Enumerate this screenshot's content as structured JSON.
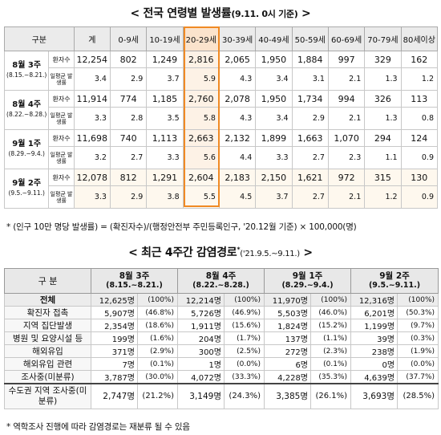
{
  "title1": {
    "main": "< 전국 연령별 발생률",
    "sub": "(9.11. 0시 기준)",
    "end": " >"
  },
  "table1": {
    "header": [
      "구분",
      "계",
      "0-9세",
      "10-19세",
      "20-29세",
      "30-39세",
      "40-49세",
      "50-59세",
      "60-69세",
      "70-79세",
      "80세이상"
    ],
    "label_cases": "환자수",
    "label_rate": "일평균 발생률",
    "weeks": [
      {
        "week": "8월 3주",
        "dates": "(8.15.~8.21.)",
        "cases": [
          "12,254",
          "802",
          "1,249",
          "2,816",
          "2,065",
          "1,950",
          "1,884",
          "997",
          "329",
          "162"
        ],
        "rates": [
          "3.4",
          "2.9",
          "3.7",
          "5.9",
          "4.3",
          "3.4",
          "3.1",
          "2.1",
          "1.3",
          "1.2"
        ]
      },
      {
        "week": "8월 4주",
        "dates": "(8.22.~8.28.)",
        "cases": [
          "11,914",
          "774",
          "1,185",
          "2,760",
          "2,078",
          "1,950",
          "1,734",
          "994",
          "326",
          "113"
        ],
        "rates": [
          "3.3",
          "2.8",
          "3.5",
          "5.8",
          "4.3",
          "3.4",
          "2.9",
          "2.1",
          "1.3",
          "0.8"
        ]
      },
      {
        "week": "9월 1주",
        "dates": "(8.29.~9.4.)",
        "cases": [
          "11,698",
          "740",
          "1,113",
          "2,663",
          "2,132",
          "1,899",
          "1,663",
          "1,070",
          "294",
          "124"
        ],
        "rates": [
          "3.2",
          "2.7",
          "3.3",
          "5.6",
          "4.4",
          "3.3",
          "2.7",
          "2.3",
          "1.1",
          "0.9"
        ]
      },
      {
        "week": "9월 2주",
        "dates": "(9.5.~9.11.)",
        "cases": [
          "12,078",
          "812",
          "1,291",
          "2,604",
          "2,183",
          "2,150",
          "1,621",
          "972",
          "315",
          "130"
        ],
        "rates": [
          "3.3",
          "2.9",
          "3.8",
          "5.5",
          "4.5",
          "3.7",
          "2.7",
          "2.1",
          "1.2",
          "0.9"
        ]
      }
    ]
  },
  "note1": "* (인구 10만 명당 발생률) = (확진자수)/(행정안전부 주민등록인구, '20.12월 기준) × 100,000(명)",
  "title2": {
    "main": "< 최근 4주간 감염경로",
    "sup": "*",
    "sub": "('21.9.5.~9.11.)",
    "end": " >"
  },
  "table2": {
    "header_label": "구 분",
    "periods": [
      {
        "week": "8월 3주",
        "dates": "(8.15.~8.21.)"
      },
      {
        "week": "8월 4주",
        "dates": "(8.22.~8.28.)"
      },
      {
        "week": "9월 1주",
        "dates": "(8.29.~9.4.)"
      },
      {
        "week": "9월 2주",
        "dates": "(9.5.~9.11.)"
      }
    ],
    "rows": [
      {
        "label": "전체",
        "values": [
          [
            "12,625명",
            "(100%)"
          ],
          [
            "12,214명",
            "(100%)"
          ],
          [
            "11,970명",
            "(100%)"
          ],
          [
            "12,316명",
            "(100%)"
          ]
        ]
      },
      {
        "label": "확진자 접촉",
        "values": [
          [
            "5,907명",
            "(46.8%)"
          ],
          [
            "5,726명",
            "(46.9%)"
          ],
          [
            "5,503명",
            "(46.0%)"
          ],
          [
            "6,201명",
            "(50.3%)"
          ]
        ]
      },
      {
        "label": "지역 집단발생",
        "values": [
          [
            "2,354명",
            "(18.6%)"
          ],
          [
            "1,911명",
            "(15.6%)"
          ],
          [
            "1,824명",
            "(15.2%)"
          ],
          [
            "1,199명",
            "(9.7%)"
          ]
        ]
      },
      {
        "label": "병원 및 요양시설 등",
        "values": [
          [
            "199명",
            "(1.6%)"
          ],
          [
            "204명",
            "(1.7%)"
          ],
          [
            "137명",
            "(1.1%)"
          ],
          [
            "39명",
            "(0.3%)"
          ]
        ]
      },
      {
        "label": "해외유입",
        "values": [
          [
            "371명",
            "(2.9%)"
          ],
          [
            "300명",
            "(2.5%)"
          ],
          [
            "272명",
            "(2.3%)"
          ],
          [
            "238명",
            "(1.9%)"
          ]
        ]
      },
      {
        "label": "해외유입 관련",
        "values": [
          [
            "7명",
            "(0.1%)"
          ],
          [
            "1명",
            "(0.0%)"
          ],
          [
            "6명",
            "(0.1%)"
          ],
          [
            "0명",
            "(0.0%)"
          ]
        ]
      },
      {
        "label": "조사중(미분류)",
        "values": [
          [
            "3,787명",
            "(30.0%)"
          ],
          [
            "4,072명",
            "(33.3%)"
          ],
          [
            "4,228명",
            "(35.3%)"
          ],
          [
            "4,639명",
            "(37.7%)"
          ]
        ]
      },
      {
        "label": "수도권 지역 조사중(미분류)",
        "values": [
          [
            "2,747명",
            "(21.2%)"
          ],
          [
            "3,149명",
            "(24.3%)"
          ],
          [
            "3,385명",
            "(26.1%)"
          ],
          [
            "3,693명",
            "(28.5%)"
          ]
        ]
      }
    ]
  },
  "note2": "* 역학조사 진행에 따라 감염경로는 재분류 될 수 있음"
}
